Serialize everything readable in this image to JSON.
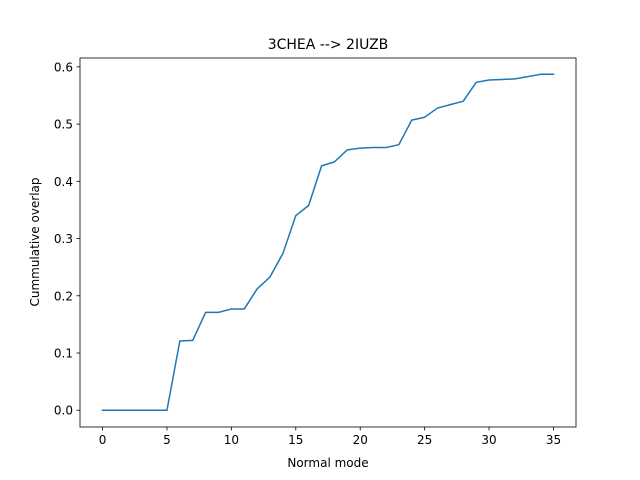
{
  "chart_data": {
    "type": "line",
    "title": "3CHEA --> 2IUZB",
    "xlabel": "Normal mode",
    "ylabel": "Cummulative overlap",
    "xlim": [
      -1.75,
      36.75
    ],
    "ylim": [
      -0.0293,
      0.6155
    ],
    "xticks": [
      0,
      5,
      10,
      15,
      20,
      25,
      30,
      35
    ],
    "xtick_labels": [
      "0",
      "5",
      "10",
      "15",
      "20",
      "25",
      "30",
      "35"
    ],
    "yticks": [
      0.0,
      0.1,
      0.2,
      0.3,
      0.4,
      0.5,
      0.6
    ],
    "ytick_labels": [
      "0.0",
      "0.1",
      "0.2",
      "0.3",
      "0.4",
      "0.5",
      "0.6"
    ],
    "grid": false,
    "series": [
      {
        "color": "#1f77b4",
        "x": [
          0,
          1,
          2,
          3,
          4,
          5,
          6,
          7,
          8,
          9,
          10,
          11,
          12,
          13,
          14,
          15,
          16,
          17,
          18,
          19,
          20,
          21,
          22,
          23,
          24,
          25,
          26,
          27,
          28,
          29,
          30,
          31,
          32,
          33,
          34,
          35
        ],
        "y": [
          0.0,
          0.0,
          0.0,
          0.0,
          0.0,
          0.0,
          0.121,
          0.122,
          0.171,
          0.171,
          0.177,
          0.177,
          0.212,
          0.233,
          0.274,
          0.34,
          0.358,
          0.427,
          0.434,
          0.455,
          0.458,
          0.459,
          0.459,
          0.464,
          0.507,
          0.512,
          0.528,
          0.534,
          0.54,
          0.573,
          0.577,
          0.578,
          0.579,
          0.583,
          0.587,
          0.587
        ]
      }
    ]
  }
}
